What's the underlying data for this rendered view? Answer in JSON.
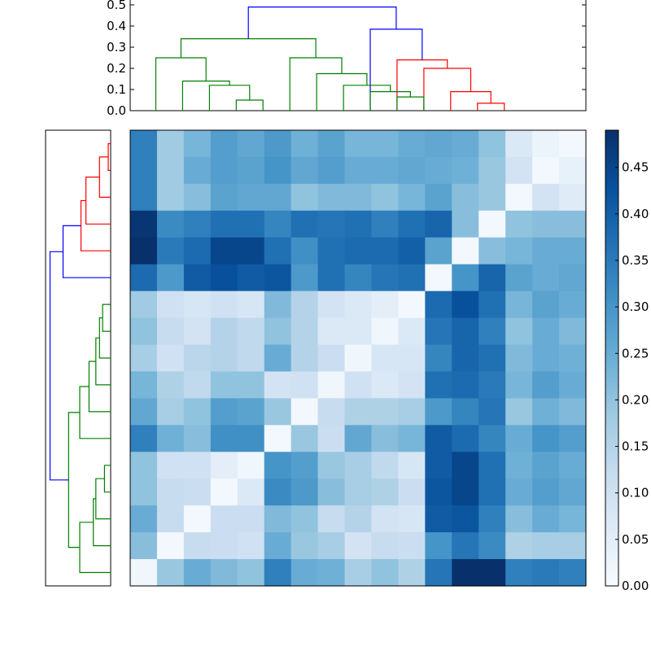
{
  "chart_data": {
    "type": "heatmap",
    "colormap": "Blues",
    "colors": {
      "top_green": "#008000",
      "top_red": "#ff0000",
      "top_blue": "#0000ff"
    },
    "heatmap": {
      "rows": 17,
      "cols": 17,
      "values": [
        [
          0.34,
          0.18,
          0.23,
          0.28,
          0.26,
          0.29,
          0.24,
          0.27,
          0.23,
          0.23,
          0.25,
          0.26,
          0.25,
          0.2,
          0.07,
          0.03,
          0.01
        ],
        [
          0.34,
          0.18,
          0.25,
          0.28,
          0.27,
          0.3,
          0.26,
          0.28,
          0.25,
          0.25,
          0.26,
          0.25,
          0.24,
          0.19,
          0.09,
          0.01,
          0.04
        ],
        [
          0.34,
          0.18,
          0.21,
          0.27,
          0.26,
          0.26,
          0.2,
          0.22,
          0.22,
          0.2,
          0.23,
          0.27,
          0.21,
          0.19,
          0.01,
          0.09,
          0.06
        ],
        [
          0.48,
          0.32,
          0.34,
          0.37,
          0.37,
          0.33,
          0.37,
          0.36,
          0.37,
          0.34,
          0.37,
          0.39,
          0.21,
          0.01,
          0.2,
          0.21,
          0.21
        ],
        [
          0.49,
          0.35,
          0.38,
          0.45,
          0.45,
          0.37,
          0.31,
          0.37,
          0.38,
          0.38,
          0.4,
          0.27,
          0.01,
          0.21,
          0.23,
          0.25,
          0.25
        ],
        [
          0.38,
          0.29,
          0.41,
          0.43,
          0.41,
          0.42,
          0.29,
          0.37,
          0.33,
          0.36,
          0.37,
          0.01,
          0.3,
          0.39,
          0.27,
          0.25,
          0.26
        ],
        [
          0.18,
          0.1,
          0.08,
          0.1,
          0.08,
          0.22,
          0.15,
          0.09,
          0.07,
          0.05,
          0.01,
          0.38,
          0.43,
          0.37,
          0.23,
          0.27,
          0.25
        ],
        [
          0.2,
          0.12,
          0.09,
          0.15,
          0.13,
          0.2,
          0.15,
          0.07,
          0.07,
          0.02,
          0.07,
          0.36,
          0.39,
          0.34,
          0.2,
          0.25,
          0.22
        ],
        [
          0.17,
          0.1,
          0.14,
          0.15,
          0.13,
          0.25,
          0.15,
          0.11,
          0.02,
          0.08,
          0.08,
          0.33,
          0.39,
          0.37,
          0.22,
          0.25,
          0.24
        ],
        [
          0.23,
          0.16,
          0.13,
          0.2,
          0.2,
          0.09,
          0.1,
          0.02,
          0.1,
          0.07,
          0.09,
          0.37,
          0.38,
          0.35,
          0.23,
          0.28,
          0.25
        ],
        [
          0.26,
          0.17,
          0.2,
          0.28,
          0.27,
          0.19,
          0.01,
          0.12,
          0.16,
          0.16,
          0.17,
          0.29,
          0.33,
          0.36,
          0.19,
          0.24,
          0.22
        ],
        [
          0.34,
          0.24,
          0.21,
          0.31,
          0.31,
          0.01,
          0.19,
          0.11,
          0.26,
          0.21,
          0.23,
          0.41,
          0.38,
          0.33,
          0.25,
          0.3,
          0.28
        ],
        [
          0.2,
          0.1,
          0.1,
          0.05,
          0.02,
          0.3,
          0.28,
          0.19,
          0.17,
          0.13,
          0.08,
          0.41,
          0.45,
          0.37,
          0.24,
          0.27,
          0.25
        ],
        [
          0.2,
          0.12,
          0.11,
          0.01,
          0.07,
          0.32,
          0.29,
          0.21,
          0.17,
          0.16,
          0.11,
          0.42,
          0.45,
          0.37,
          0.25,
          0.28,
          0.26
        ],
        [
          0.25,
          0.12,
          0.01,
          0.11,
          0.11,
          0.22,
          0.2,
          0.12,
          0.15,
          0.09,
          0.08,
          0.41,
          0.42,
          0.34,
          0.21,
          0.25,
          0.23
        ],
        [
          0.21,
          0.01,
          0.12,
          0.11,
          0.1,
          0.25,
          0.19,
          0.17,
          0.09,
          0.12,
          0.11,
          0.3,
          0.36,
          0.32,
          0.16,
          0.17,
          0.17
        ],
        [
          0.02,
          0.19,
          0.25,
          0.22,
          0.2,
          0.34,
          0.25,
          0.24,
          0.17,
          0.2,
          0.16,
          0.36,
          0.49,
          0.49,
          0.34,
          0.35,
          0.34
        ]
      ]
    },
    "colorbar": {
      "min": 0.0,
      "max": 0.49,
      "tick_values": [
        0.0,
        0.05,
        0.1,
        0.15,
        0.2,
        0.25,
        0.3,
        0.35,
        0.4,
        0.45
      ],
      "tick_labels": [
        "0.00",
        "0.05",
        "0.10",
        "0.15",
        "0.20",
        "0.25",
        "0.30",
        "0.35",
        "0.40",
        "0.45"
      ]
    },
    "top_dendrogram": {
      "ylim": [
        0,
        0.5
      ],
      "tick_values": [
        0.0,
        0.1,
        0.2,
        0.3,
        0.4,
        0.5
      ],
      "tick_labels": [
        "0.0",
        "0.1",
        "0.2",
        "0.3",
        "0.4",
        "0.5"
      ],
      "n_leaves": 17,
      "links": [
        {
          "x": [
            12.5,
            12.5,
            13.5,
            13.5
          ],
          "y": [
            0,
            0.035,
            0.035,
            0
          ],
          "color": "red"
        },
        {
          "x": [
            11.5,
            11.5,
            13.0,
            13.0
          ],
          "y": [
            0,
            0.09,
            0.09,
            0.035
          ],
          "color": "red"
        },
        {
          "x": [
            10.5,
            10.5,
            12.25,
            12.25
          ],
          "y": [
            0,
            0.2,
            0.2,
            0.09
          ],
          "color": "red"
        },
        {
          "x": [
            9.5,
            9.5,
            11.375,
            11.375
          ],
          "y": [
            0,
            0.24,
            0.24,
            0.2
          ],
          "color": "red"
        },
        {
          "x": [
            8.5,
            8.5,
            10.4375,
            10.4375
          ],
          "y": [
            0,
            0.385,
            0.385,
            0.24
          ],
          "color": "blue"
        },
        {
          "x": [
            3.5,
            3.5,
            4.5,
            4.5
          ],
          "y": [
            0,
            0.05,
            0.05,
            0
          ],
          "color": "green"
        },
        {
          "x": [
            2.5,
            2.5,
            4.0,
            4.0
          ],
          "y": [
            0,
            0.12,
            0.12,
            0.05
          ],
          "color": "green"
        },
        {
          "x": [
            1.5,
            1.5,
            3.25,
            3.25
          ],
          "y": [
            0,
            0.14,
            0.14,
            0.12
          ],
          "color": "green"
        },
        {
          "x": [
            0.5,
            0.5,
            2.375,
            2.375
          ],
          "y": [
            0,
            0.25,
            0.25,
            0.14
          ],
          "color": "green"
        },
        {
          "x": [
            9.5,
            9.5,
            10.5,
            10.5
          ],
          "y": [
            0,
            0.065,
            0.065,
            0
          ],
          "color": "green"
        },
        {
          "x": [
            8.5,
            8.5,
            10.0,
            10.0
          ],
          "y": [
            0,
            0.09,
            0.09,
            0.065
          ],
          "color": "green"
        },
        {
          "x": [
            7.5,
            7.5,
            9.25,
            9.25
          ],
          "y": [
            0,
            0.12,
            0.12,
            0.09
          ],
          "color": "green"
        },
        {
          "x": [
            6.5,
            6.5,
            8.375,
            8.375
          ],
          "y": [
            0,
            0.175,
            0.175,
            0.12
          ],
          "color": "green"
        },
        {
          "x": [
            5.5,
            5.5,
            7.4375,
            7.4375
          ],
          "y": [
            0,
            0.25,
            0.25,
            0.175
          ],
          "color": "green"
        },
        {
          "x": [
            1.4375,
            1.4375,
            6.46875,
            6.46875
          ],
          "y": [
            0.25,
            0.34,
            0.34,
            0.25
          ],
          "color": "green"
        },
        {
          "x": [
            3.953125,
            3.953125,
            9.46875,
            9.46875
          ],
          "y": [
            0.34,
            0.49,
            0.49,
            0.385
          ],
          "color": "blue"
        }
      ]
    },
    "left_dendrogram": {
      "n_leaves": 17,
      "links": [
        {
          "y": [
            0.5,
            0.5,
            1.5,
            1.5
          ],
          "d": [
            0,
            0.02,
            0.02,
            0
          ],
          "color": "red"
        },
        {
          "y": [
            1.0,
            1.0,
            2.5,
            2.5
          ],
          "d": [
            0.02,
            0.09,
            0.09,
            0
          ],
          "color": "red"
        },
        {
          "y": [
            1.75,
            1.75,
            3.5,
            3.5
          ],
          "d": [
            0.09,
            0.2,
            0.2,
            0
          ],
          "color": "red"
        },
        {
          "y": [
            2.625,
            2.625,
            4.5,
            4.5
          ],
          "d": [
            0.2,
            0.24,
            0.24,
            0
          ],
          "color": "red"
        },
        {
          "y": [
            3.5625,
            3.5625,
            5.5,
            5.5
          ],
          "d": [
            0.24,
            0.385,
            0.385,
            0
          ],
          "color": "blue"
        },
        {
          "y": [
            6.5,
            6.5,
            7.5,
            7.5
          ],
          "d": [
            0,
            0.065,
            0.065,
            0
          ],
          "color": "green"
        },
        {
          "y": [
            7.0,
            7.0,
            8.5,
            8.5
          ],
          "d": [
            0.065,
            0.09,
            0.09,
            0
          ],
          "color": "green"
        },
        {
          "y": [
            7.75,
            7.75,
            9.5,
            9.5
          ],
          "d": [
            0.09,
            0.12,
            0.12,
            0
          ],
          "color": "green"
        },
        {
          "y": [
            8.625,
            8.625,
            10.5,
            10.5
          ],
          "d": [
            0.12,
            0.175,
            0.175,
            0
          ],
          "color": "green"
        },
        {
          "y": [
            9.5625,
            9.5625,
            11.5,
            11.5
          ],
          "d": [
            0.175,
            0.25,
            0.25,
            0
          ],
          "color": "green"
        },
        {
          "y": [
            12.5,
            12.5,
            13.5,
            13.5
          ],
          "d": [
            0,
            0.05,
            0.05,
            0
          ],
          "color": "green"
        },
        {
          "y": [
            13.0,
            13.0,
            14.5,
            14.5
          ],
          "d": [
            0.05,
            0.12,
            0.12,
            0
          ],
          "color": "green"
        },
        {
          "y": [
            13.75,
            13.75,
            15.5,
            15.5
          ],
          "d": [
            0.12,
            0.14,
            0.14,
            0
          ],
          "color": "green"
        },
        {
          "y": [
            14.625,
            14.625,
            16.5,
            16.5
          ],
          "d": [
            0.14,
            0.25,
            0.25,
            0
          ],
          "color": "green"
        },
        {
          "y": [
            10.53125,
            10.53125,
            15.5625,
            15.5625
          ],
          "d": [
            0.25,
            0.34,
            0.34,
            0.25
          ],
          "color": "green"
        },
        {
          "y": [
            4.53125,
            4.53125,
            13.046875,
            13.046875
          ],
          "d": [
            0.385,
            0.49,
            0.49,
            0.34
          ],
          "color": "blue"
        }
      ]
    }
  }
}
